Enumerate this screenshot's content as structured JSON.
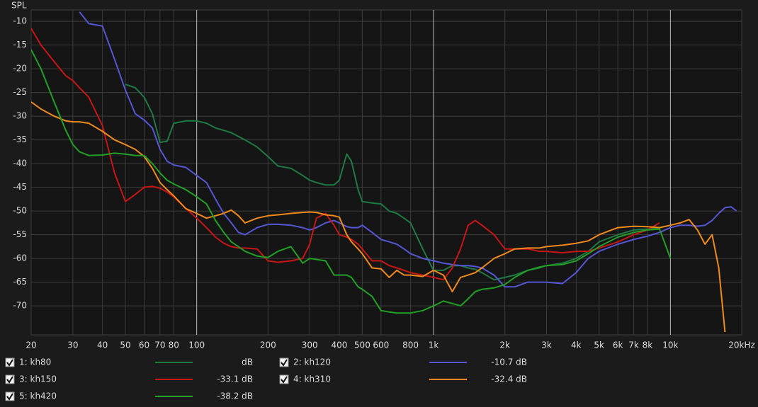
{
  "chart_data": {
    "type": "line",
    "y_label": "SPL",
    "log_x": true,
    "grid": true,
    "xlim": [
      20,
      20000
    ],
    "ylim": [
      -76.1,
      -7.6
    ],
    "xticks": [
      20,
      30,
      40,
      50,
      60,
      70,
      80,
      100,
      200,
      300,
      400,
      500,
      600,
      800,
      {
        "value": 1000,
        "label": "1k"
      },
      {
        "value": 2000,
        "label": "2k"
      },
      {
        "value": 3000,
        "label": "3k"
      },
      {
        "value": 4000,
        "label": "4k"
      },
      {
        "value": 5000,
        "label": "5k"
      },
      {
        "value": 6000,
        "label": "6k"
      },
      {
        "value": 7000,
        "label": "7k"
      },
      {
        "value": 8000,
        "label": "8k"
      },
      {
        "value": 10000,
        "label": "10k"
      },
      {
        "value": 20000,
        "label": "20kHz"
      }
    ],
    "yticks": [
      -10,
      -15,
      -20,
      -25,
      -30,
      -35,
      -40,
      -45,
      -50,
      -55,
      -60,
      -65,
      -70
    ],
    "x": [
      20,
      22,
      25,
      28,
      30,
      32,
      35,
      40,
      45,
      50,
      55,
      60,
      65,
      70,
      75,
      80,
      90,
      100,
      110,
      120,
      130,
      140,
      150,
      160,
      180,
      200,
      220,
      250,
      280,
      300,
      320,
      350,
      380,
      400,
      430,
      450,
      480,
      500,
      550,
      600,
      650,
      700,
      750,
      800,
      900,
      1000,
      1100,
      1200,
      1300,
      1400,
      1500,
      1600,
      1800,
      2000,
      2200,
      2500,
      2800,
      3000,
      3500,
      4000,
      4500,
      5000,
      6000,
      7000,
      8000,
      9000,
      10000,
      11000,
      12000,
      13000,
      14000,
      15000,
      16000,
      17000,
      18000,
      19000
    ],
    "series": [
      {
        "name": "1: kh80",
        "color": "#1f7a45",
        "checked": true,
        "readout": "dB",
        "values": [
          null,
          null,
          null,
          null,
          null,
          null,
          null,
          null,
          null,
          -23.3,
          -24,
          -26,
          -29.5,
          -35.5,
          -35.3,
          -31.5,
          -31,
          -31,
          -31.5,
          -32.5,
          -33,
          -33.5,
          -34.3,
          -35,
          -36.5,
          -38.5,
          -40.5,
          -41,
          -42.5,
          -43.5,
          -44,
          -44.5,
          -44.5,
          -43.5,
          -38,
          -39.5,
          -45.5,
          -48,
          -48.3,
          -48.5,
          -50,
          -50.5,
          -51.5,
          -52.5,
          -58,
          -62.5,
          -62.5,
          -61.5,
          -61.5,
          -62,
          -62.3,
          -63,
          -64.5,
          -64,
          -63.5,
          -62.5,
          -62,
          -61.5,
          -61,
          -60,
          -58.5,
          -56.5,
          -55,
          -54,
          -53.8,
          -53.5,
          -53,
          null,
          null,
          null,
          null,
          null,
          null,
          null,
          null,
          null
        ]
      },
      {
        "name": "2: kh120",
        "color": "#5656d6",
        "checked": true,
        "readout": "-10.7 dB",
        "values": [
          null,
          null,
          null,
          null,
          null,
          -8,
          -10.5,
          -11,
          -18,
          -24.5,
          -29.5,
          -30.8,
          -32.5,
          -37,
          -39.5,
          -40.3,
          -40.8,
          -42.5,
          -44,
          -47.5,
          -50.5,
          -52.5,
          -54.5,
          -55,
          -53.5,
          -52.8,
          -52.8,
          -53,
          -53.5,
          -54,
          -53.5,
          -52.5,
          -52,
          -52.5,
          -53.3,
          -53.5,
          -53.5,
          -53,
          -54.5,
          -56,
          -56.5,
          -57,
          -58,
          -59,
          -60,
          -60.5,
          -61,
          -61.3,
          -61.5,
          -61.5,
          -61.7,
          -62,
          -63.5,
          -66,
          -66,
          -65,
          -65,
          -65,
          -65.3,
          -63,
          -60,
          -58.5,
          -57,
          -56,
          -55.3,
          -54.5,
          -53.5,
          -53,
          -53,
          -53.2,
          -53,
          -52,
          -50.5,
          -49.3,
          -49.1,
          -50
        ]
      },
      {
        "name": "3: kh150",
        "color": "#c81616",
        "checked": true,
        "readout": "-33.1 dB",
        "values": [
          -11.5,
          -15,
          -18.5,
          -21.5,
          -22.5,
          -24,
          -26,
          -32,
          -42,
          -48,
          -46.5,
          -45,
          -44.8,
          -45.2,
          -46,
          -47,
          -49.5,
          -51.5,
          -53.5,
          -55.5,
          -56.8,
          -57.5,
          -57.8,
          -57.8,
          -58,
          -60.5,
          -60.8,
          -60.5,
          -60,
          -57,
          -51.5,
          -50.5,
          -53,
          -55,
          -55.5,
          -56,
          -57,
          -58,
          -60.5,
          -60.5,
          -61.5,
          -62,
          -62.5,
          -63,
          -63.5,
          -64,
          -64.5,
          -62,
          -58,
          -53,
          -52,
          -53,
          -55,
          -58,
          -58,
          -58,
          -58.5,
          -58.5,
          -58.8,
          -58.5,
          -58.5,
          -57.8,
          -56.5,
          -55,
          -54,
          -52.5,
          null,
          null,
          null,
          null,
          null,
          null,
          null,
          null,
          null,
          null
        ]
      },
      {
        "name": "4: kh310",
        "color": "#f08a1c",
        "checked": true,
        "readout": "-32.4 dB",
        "values": [
          -27,
          -28.5,
          -30,
          -31,
          -31.2,
          -31.2,
          -31.5,
          -33.2,
          -35,
          -36,
          -37,
          -38.5,
          -41,
          -44,
          -45.5,
          -46.8,
          -49.5,
          -50.5,
          -51.5,
          -51,
          -50.5,
          -49.8,
          -51,
          -52.5,
          -51.5,
          -51,
          -50.8,
          -50.5,
          -50.3,
          -50.2,
          -50.3,
          -50.8,
          -51,
          -51.3,
          -55,
          -56.5,
          -58,
          -59,
          -62,
          -62.2,
          -64,
          -62.5,
          -63.5,
          -63.5,
          -63.8,
          -62.5,
          -63.5,
          -67,
          -64,
          -63.5,
          -63,
          -62,
          -60,
          -59,
          -58,
          -57.8,
          -57.8,
          -57.5,
          -57.2,
          -56.8,
          -56.3,
          -55,
          -53.5,
          -53.2,
          -53.3,
          -53.5,
          -53,
          -52.5,
          -51.8,
          -54,
          -57,
          -55,
          -62,
          -75.5,
          null,
          null
        ]
      },
      {
        "name": "5: kh420",
        "color": "#22a026",
        "checked": true,
        "readout": "-38.2 dB",
        "values": [
          -16,
          -20,
          -27,
          -33,
          -36,
          -37.5,
          -38.3,
          -38.2,
          -37.8,
          -38,
          -38.3,
          -38.3,
          -40,
          -42,
          -43.5,
          -44.3,
          -45.5,
          -47,
          -48.5,
          -52,
          -54.5,
          -56.5,
          -57.5,
          -58.5,
          -59.5,
          -59.8,
          -58.5,
          -57.5,
          -61,
          -60,
          -60.2,
          -60.5,
          -63.5,
          -63.5,
          -63.5,
          -64,
          -66,
          -66.5,
          -68,
          -71,
          -71.3,
          -71.5,
          -71.5,
          -71.5,
          -71,
          -70,
          -69,
          -69.5,
          -70,
          -68.5,
          -67,
          -66.5,
          -66.2,
          -65.5,
          -64,
          -62.5,
          -61.8,
          -61.5,
          -61.3,
          -60.5,
          -59,
          -57.5,
          -55.5,
          -54.5,
          -54,
          -53.8,
          -60,
          null,
          null,
          null,
          null,
          null,
          null,
          null,
          null,
          null
        ]
      }
    ]
  }
}
